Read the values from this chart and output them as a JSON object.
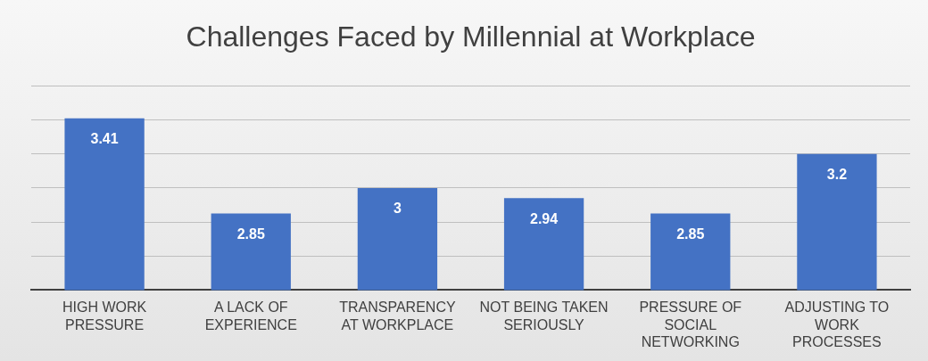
{
  "chart_data": {
    "type": "bar",
    "title": "Challenges Faced by Millennial at Workplace",
    "categories": [
      "HIGH WORK PRESSURE",
      "A LACK OF EXPERIENCE",
      "TRANSPARENCY AT WORKPLACE",
      "NOT BEING TAKEN SERIOUSLY",
      "PRESSURE OF SOCIAL NETWORKING",
      "ADJUSTING TO WORK PROCESSES"
    ],
    "values": [
      3.41,
      2.85,
      3,
      2.94,
      2.85,
      3.2
    ],
    "color": "#4472c4",
    "ylim": [
      2.4,
      3.6
    ],
    "yticks": [
      {
        "value": 2.4,
        "label": null
      },
      {
        "value": 2.6,
        "label": null
      },
      {
        "value": 2.8,
        "label": null
      },
      {
        "value": 3.0,
        "label": null
      },
      {
        "value": 3.2,
        "label": null
      },
      {
        "value": 3.4,
        "label": null
      },
      {
        "value": 3.6,
        "label": null
      }
    ],
    "tick_labels": "x",
    "grid": "y",
    "data_labels": true,
    "legend": false
  }
}
